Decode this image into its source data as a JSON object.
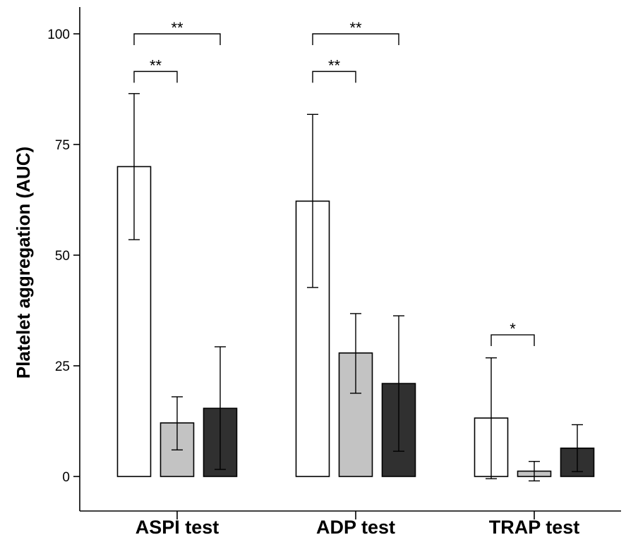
{
  "chart_data": {
    "type": "bar",
    "title": "",
    "xlabel": "",
    "ylabel": "Platelet aggregation (AUC)",
    "ylim": [
      -8,
      106
    ],
    "yticks": [
      0,
      25,
      50,
      75,
      100
    ],
    "grid": false,
    "legend": "none",
    "categories": [
      "ASPI test",
      "ADP test",
      "TRAP test"
    ],
    "series": [
      {
        "color": "#ffffff",
        "values": [
          70,
          62.2,
          13.2
        ],
        "error_low": [
          53.5,
          42.7,
          -0.5
        ],
        "error_high": [
          86.5,
          81.8,
          26.8
        ]
      },
      {
        "color": "#c3c3c3",
        "values": [
          12.1,
          27.9,
          1.2
        ],
        "error_low": [
          6.0,
          18.8,
          -1.0
        ],
        "error_high": [
          18.0,
          36.8,
          3.4
        ]
      },
      {
        "color": "#303030",
        "values": [
          15.4,
          21.0,
          6.4
        ],
        "error_low": [
          1.6,
          5.7,
          1.1
        ],
        "error_high": [
          29.3,
          36.3,
          11.7
        ]
      }
    ],
    "significance": [
      {
        "category": 0,
        "from_series": 0,
        "to_series": 2,
        "level": 100,
        "label": "**"
      },
      {
        "category": 0,
        "from_series": 0,
        "to_series": 1,
        "level": 91.5,
        "label": "**"
      },
      {
        "category": 1,
        "from_series": 0,
        "to_series": 2,
        "level": 100,
        "label": "**"
      },
      {
        "category": 1,
        "from_series": 0,
        "to_series": 1,
        "level": 91.5,
        "label": "**"
      },
      {
        "category": 2,
        "from_series": 0,
        "to_series": 1,
        "level": 32,
        "label": "*"
      }
    ]
  }
}
